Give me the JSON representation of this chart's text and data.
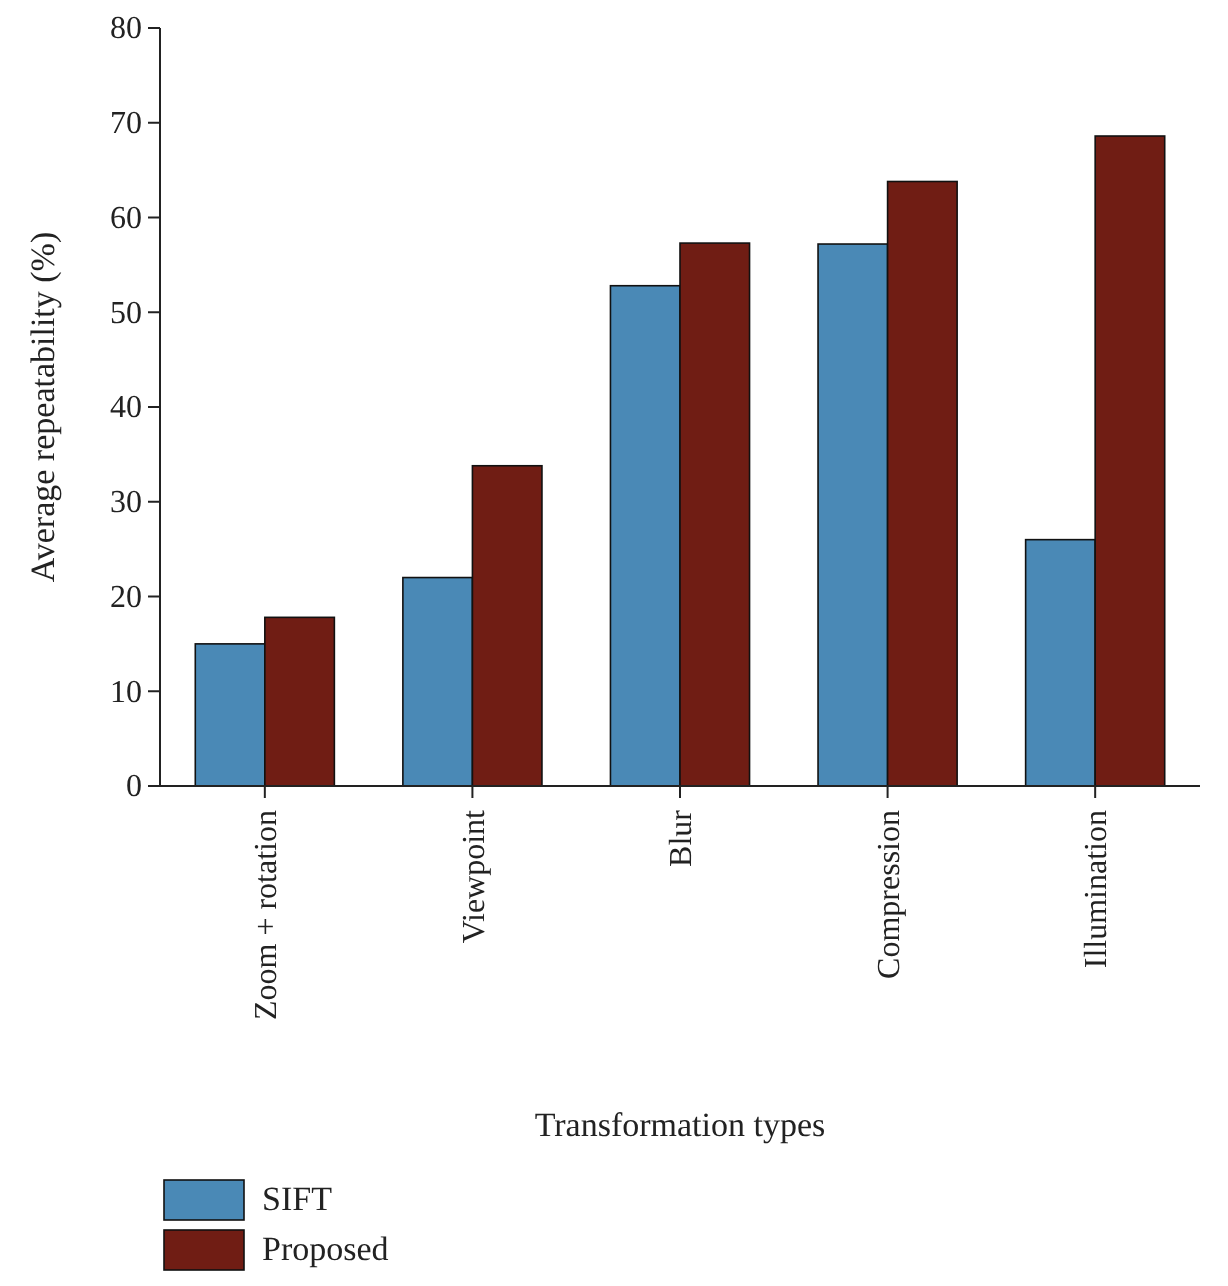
{
  "chart_data": {
    "type": "bar",
    "xlabel": "Transformation types",
    "ylabel": "Average repeatability (%)",
    "categories": [
      "Zoom + rotation",
      "Viewpoint",
      "Blur",
      "Compression",
      "Illumination"
    ],
    "series": [
      {
        "name": "SIFT",
        "color": "#4a89b6",
        "values": [
          15,
          22,
          52.8,
          57.2,
          26
        ]
      },
      {
        "name": "Proposed",
        "color": "#701d14",
        "values": [
          17.8,
          33.8,
          57.3,
          63.8,
          68.6
        ]
      }
    ],
    "ylim": [
      0,
      80
    ],
    "yticks": [
      0,
      10,
      20,
      30,
      40,
      50,
      60,
      70,
      80
    ],
    "grid": false,
    "legend": "bottom left"
  }
}
